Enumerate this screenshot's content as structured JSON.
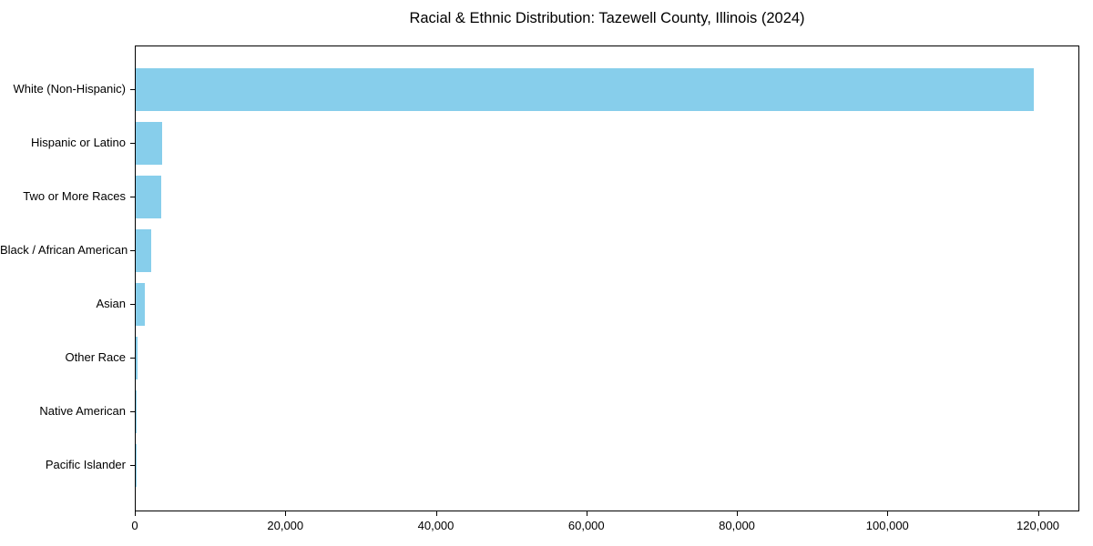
{
  "chart_data": {
    "type": "bar",
    "orientation": "horizontal",
    "title": "Racial & Ethnic Distribution: Tazewell County, Illinois (2024)",
    "categories": [
      "White (Non-Hispanic)",
      "Hispanic or Latino",
      "Two or More Races",
      "Black / African American",
      "Asian",
      "Other Race",
      "Native American",
      "Pacific Islander"
    ],
    "values": [
      119600,
      3500,
      3400,
      2100,
      1250,
      200,
      150,
      40
    ],
    "xlabel": "",
    "ylabel": "",
    "xlim": [
      0,
      125500
    ],
    "xtick_values": [
      0,
      20000,
      40000,
      60000,
      80000,
      100000,
      120000
    ],
    "xtick_labels": [
      "0",
      "20,000",
      "40,000",
      "60,000",
      "80,000",
      "100,000",
      "120,000"
    ],
    "bar_color": "#87CEEB",
    "axis_color": "#000000",
    "text_color": "#000000",
    "background_color": "#FFFFFF",
    "grid": false,
    "legend": null
  }
}
